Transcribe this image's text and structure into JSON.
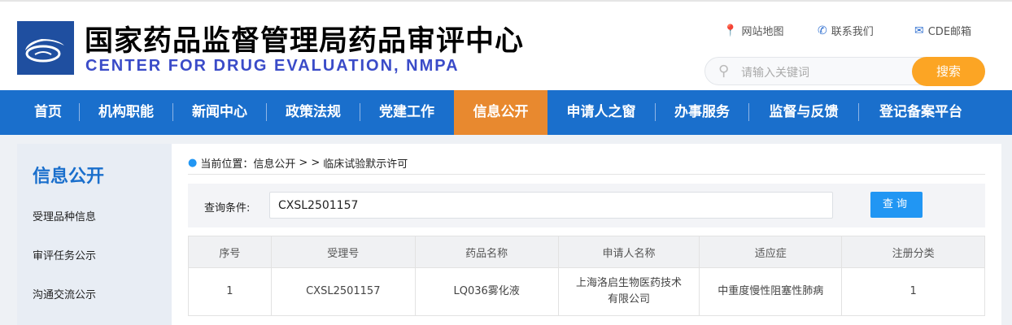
{
  "header": {
    "title_cn": "国家药品监督管理局药品审评中心",
    "title_en": "CENTER FOR DRUG EVALUATION, NMPA",
    "links": [
      {
        "icon": "map-pin-icon",
        "label": "网站地图"
      },
      {
        "icon": "phone-icon",
        "label": "联系我们"
      },
      {
        "icon": "mail-icon",
        "label": "CDE邮箱"
      }
    ],
    "search": {
      "placeholder": "请输入关键词",
      "button": "搜索"
    }
  },
  "nav": {
    "items": [
      "首页",
      "机构职能",
      "新闻中心",
      "政策法规",
      "党建工作",
      "信息公开",
      "申请人之窗",
      "办事服务",
      "监督与反馈",
      "登记备案平台"
    ],
    "active": "信息公开"
  },
  "sidebar": {
    "title": "信息公开",
    "items": [
      "受理品种信息",
      "审评任务公示",
      "沟通交流公示"
    ]
  },
  "breadcrumb": {
    "prefix": "当前位置：信息公开",
    "sep": "> >",
    "current": "临床试验默示许可"
  },
  "query": {
    "label": "查询条件:",
    "value": "CXSL2501157",
    "button": "查询"
  },
  "table": {
    "columns": [
      "序号",
      "受理号",
      "药品名称",
      "申请人名称",
      "适应症",
      "注册分类"
    ],
    "rows": [
      [
        "1",
        "CXSL2501157",
        "LQ036雾化液",
        "上海洛启生物医药技术有限公司",
        "中重度慢性阻塞性肺病",
        "1"
      ]
    ]
  },
  "colors": {
    "nav": "#1a6fcc",
    "active": "#e8892f",
    "search_button": "#fca524",
    "query_button": "#2196f3"
  }
}
